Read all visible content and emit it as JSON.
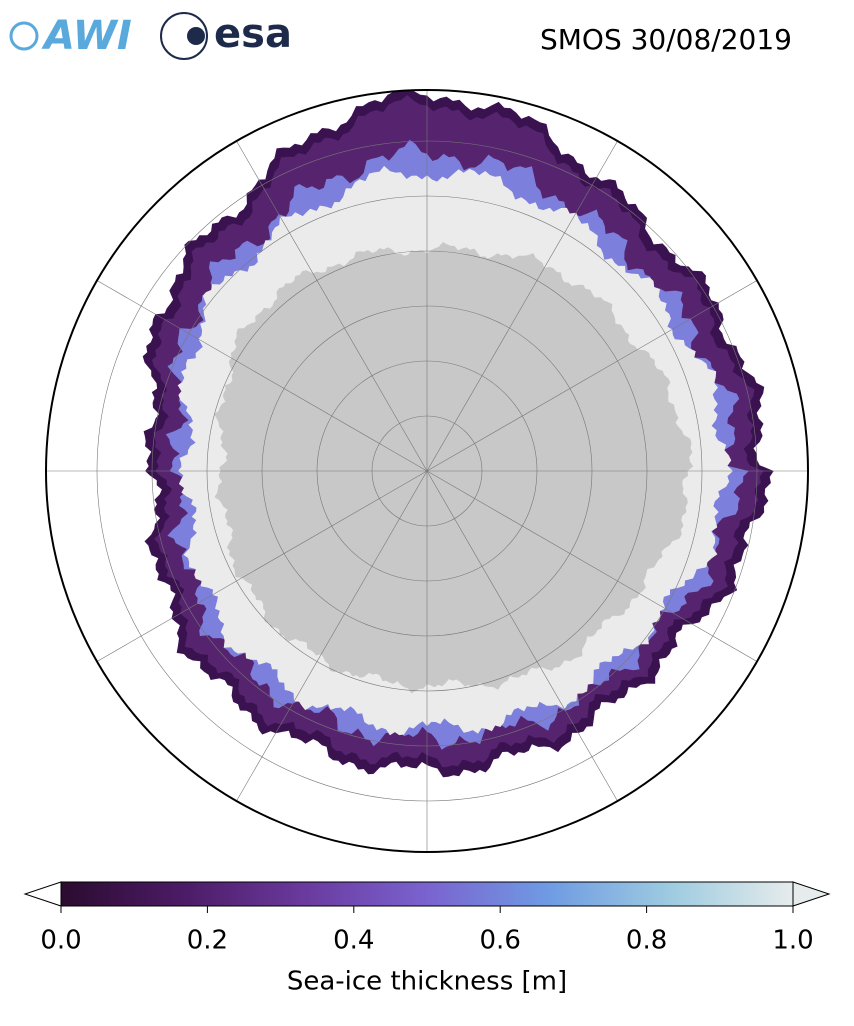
{
  "header": {
    "logos": [
      "AWI",
      "esa"
    ],
    "title": "SMOS 30/08/2019"
  },
  "colorbar": {
    "label": "Sea-ice thickness [m]",
    "lim": [
      0,
      1
    ],
    "ticks": [
      {
        "value": 0,
        "label": "0.0"
      },
      0.2,
      0.4,
      0.6,
      0.8,
      {
        "value": 1,
        "label": "1.0"
      }
    ],
    "colors": [
      "#2b0b2f",
      "#4c1b66",
      "#6a3a9e",
      "#7a63cf",
      "#6f9be3",
      "#9ecbe0",
      "#e6ecec"
    ]
  }
}
